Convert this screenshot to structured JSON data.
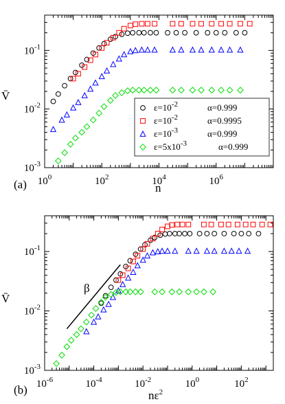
{
  "chart_data": [
    {
      "panel": "(a)",
      "type": "scatter",
      "xlabel": "n",
      "ylabel": "V̄",
      "x_scale": "log",
      "y_scale": "log",
      "xlim": [
        1,
        100000000
      ],
      "ylim": [
        0.001,
        0.4
      ],
      "x_ticks": [
        {
          "v": 1,
          "b": "10",
          "e": "0"
        },
        {
          "v": 100,
          "b": "10",
          "e": "2"
        },
        {
          "v": 10000,
          "b": "10",
          "e": "4"
        },
        {
          "v": 1000000,
          "b": "10",
          "e": "6"
        }
      ],
      "y_ticks": [
        {
          "v": 0.001,
          "b": "10",
          "e": "-3"
        },
        {
          "v": 0.01,
          "b": "10",
          "e": "-2"
        },
        {
          "v": 0.1,
          "b": "10",
          "e": "-1"
        }
      ],
      "legend": {
        "position": "bottom-right",
        "entries": [
          {
            "eps": "ε=10",
            "eps_exp": "-2",
            "alpha": "α=0.999"
          },
          {
            "eps": "ε=10",
            "eps_exp": "-2",
            "alpha": "α=0.9995"
          },
          {
            "eps": "ε=10",
            "eps_exp": "-3",
            "alpha": "α=0.999"
          },
          {
            "eps": "ε=5x10",
            "eps_exp": "-3",
            "alpha": "α=0.999"
          }
        ]
      },
      "series": [
        {
          "marker": "circle",
          "color": "#000000",
          "points": [
            [
              2,
              0.0135
            ],
            [
              3,
              0.018
            ],
            [
              5,
              0.025
            ],
            [
              8,
              0.033
            ],
            [
              12,
              0.042
            ],
            [
              20,
              0.056
            ],
            [
              30,
              0.07
            ],
            [
              50,
              0.09
            ],
            [
              80,
              0.11
            ],
            [
              120,
              0.13
            ],
            [
              200,
              0.155
            ],
            [
              300,
              0.172
            ],
            [
              500,
              0.188
            ],
            [
              800,
              0.197
            ],
            [
              1200,
              0.2
            ],
            [
              2000,
              0.2
            ],
            [
              3000,
              0.2
            ],
            [
              5000,
              0.2
            ],
            [
              8000,
              0.2
            ],
            [
              20000,
              0.2
            ],
            [
              40000,
              0.2
            ],
            [
              80000,
              0.2
            ],
            [
              200000,
              0.2
            ],
            [
              500000,
              0.2
            ],
            [
              1000000,
              0.2
            ],
            [
              2000000,
              0.2
            ],
            [
              5000000,
              0.2
            ],
            [
              10000000,
              0.2
            ]
          ]
        },
        {
          "marker": "square",
          "color": "#ff0000",
          "points": [
            [
              10,
              0.033
            ],
            [
              15,
              0.04
            ],
            [
              25,
              0.052
            ],
            [
              40,
              0.068
            ],
            [
              60,
              0.085
            ],
            [
              100,
              0.11
            ],
            [
              150,
              0.135
            ],
            [
              250,
              0.165
            ],
            [
              400,
              0.2
            ],
            [
              600,
              0.235
            ],
            [
              1000,
              0.265
            ],
            [
              1500,
              0.28
            ],
            [
              2500,
              0.285
            ],
            [
              4000,
              0.285
            ],
            [
              7000,
              0.285
            ],
            [
              30000,
              0.285
            ],
            [
              60000,
              0.285
            ],
            [
              150000,
              0.285
            ],
            [
              300000,
              0.285
            ],
            [
              700000,
              0.285
            ],
            [
              1500000,
              0.285
            ],
            [
              3000000,
              0.285
            ],
            [
              7000000,
              0.285
            ],
            [
              15000000,
              0.285
            ]
          ]
        },
        {
          "marker": "triangle",
          "color": "#0000ff",
          "points": [
            [
              2,
              0.0045
            ],
            [
              4,
              0.0065
            ],
            [
              6,
              0.008
            ],
            [
              10,
              0.0105
            ],
            [
              15,
              0.013
            ],
            [
              25,
              0.017
            ],
            [
              40,
              0.022
            ],
            [
              60,
              0.028
            ],
            [
              100,
              0.036
            ],
            [
              150,
              0.045
            ],
            [
              250,
              0.058
            ],
            [
              400,
              0.072
            ],
            [
              600,
              0.085
            ],
            [
              1000,
              0.096
            ],
            [
              1500,
              0.1
            ],
            [
              2500,
              0.102
            ],
            [
              4000,
              0.102
            ],
            [
              7000,
              0.102
            ],
            [
              30000,
              0.102
            ],
            [
              60000,
              0.102
            ],
            [
              150000,
              0.102
            ],
            [
              300000,
              0.102
            ],
            [
              700000,
              0.102
            ],
            [
              1500000,
              0.102
            ],
            [
              3000000,
              0.102
            ],
            [
              7000000,
              0.102
            ]
          ]
        },
        {
          "marker": "diamond",
          "color": "#00dd00",
          "points": [
            [
              3,
              0.0013
            ],
            [
              5,
              0.0018
            ],
            [
              8,
              0.0025
            ],
            [
              12,
              0.0032
            ],
            [
              20,
              0.004
            ],
            [
              30,
              0.005
            ],
            [
              50,
              0.0065
            ],
            [
              80,
              0.0085
            ],
            [
              120,
              0.011
            ],
            [
              200,
              0.014
            ],
            [
              300,
              0.017
            ],
            [
              500,
              0.019
            ],
            [
              800,
              0.0205
            ],
            [
              1200,
              0.021
            ],
            [
              2000,
              0.021
            ],
            [
              3000,
              0.021
            ],
            [
              5000,
              0.021
            ],
            [
              8000,
              0.021
            ],
            [
              30000,
              0.021
            ],
            [
              60000,
              0.021
            ],
            [
              150000,
              0.021
            ],
            [
              300000,
              0.021
            ],
            [
              700000,
              0.021
            ],
            [
              1500000,
              0.021
            ],
            [
              3000000,
              0.021
            ],
            [
              7000000,
              0.021
            ]
          ]
        }
      ]
    },
    {
      "panel": "(b)",
      "type": "scatter",
      "xlabel": "nε",
      "xlabel_exp": "2",
      "ylabel": "V̄",
      "x_scale": "log",
      "y_scale": "log",
      "xlim": [
        1e-06,
        2000
      ],
      "ylim": [
        0.001,
        0.4
      ],
      "x_ticks": [
        {
          "v": 1e-06,
          "b": "10",
          "e": "-6"
        },
        {
          "v": 0.0001,
          "b": "10",
          "e": "-4"
        },
        {
          "v": 0.01,
          "b": "10",
          "e": "-2"
        },
        {
          "v": 1,
          "b": "10",
          "e": "0"
        },
        {
          "v": 100,
          "b": "10",
          "e": "2"
        }
      ],
      "y_ticks": [
        {
          "v": 0.001,
          "b": "10",
          "e": "-3"
        },
        {
          "v": 0.01,
          "b": "10",
          "e": "-2"
        },
        {
          "v": 0.1,
          "b": "10",
          "e": "-1"
        }
      ],
      "annotation": {
        "text": "β",
        "line": [
          [
            8e-06,
            0.005
          ],
          [
            0.0012,
            0.06
          ]
        ]
      },
      "series": [
        {
          "marker": "circle",
          "color": "#000000",
          "points": [
            [
              0.0002,
              0.0135
            ],
            [
              0.0003,
              0.018
            ],
            [
              0.0005,
              0.025
            ],
            [
              0.0008,
              0.033
            ],
            [
              0.0012,
              0.042
            ],
            [
              0.002,
              0.056
            ],
            [
              0.003,
              0.07
            ],
            [
              0.005,
              0.09
            ],
            [
              0.008,
              0.11
            ],
            [
              0.012,
              0.13
            ],
            [
              0.02,
              0.155
            ],
            [
              0.03,
              0.172
            ],
            [
              0.05,
              0.188
            ],
            [
              0.08,
              0.197
            ],
            [
              0.12,
              0.2
            ],
            [
              0.2,
              0.2
            ],
            [
              0.3,
              0.2
            ],
            [
              0.5,
              0.2
            ],
            [
              0.8,
              0.2
            ],
            [
              2,
              0.2
            ],
            [
              4,
              0.2
            ],
            [
              8,
              0.2
            ],
            [
              20,
              0.2
            ],
            [
              50,
              0.2
            ],
            [
              100,
              0.2
            ],
            [
              200,
              0.2
            ],
            [
              500,
              0.2
            ]
          ]
        },
        {
          "marker": "square",
          "color": "#ff0000",
          "points": [
            [
              0.001,
              0.033
            ],
            [
              0.0015,
              0.04
            ],
            [
              0.0025,
              0.052
            ],
            [
              0.004,
              0.068
            ],
            [
              0.006,
              0.085
            ],
            [
              0.01,
              0.11
            ],
            [
              0.015,
              0.135
            ],
            [
              0.025,
              0.165
            ],
            [
              0.04,
              0.2
            ],
            [
              0.06,
              0.235
            ],
            [
              0.1,
              0.265
            ],
            [
              0.15,
              0.28
            ],
            [
              0.25,
              0.285
            ],
            [
              0.4,
              0.285
            ],
            [
              0.7,
              0.285
            ],
            [
              3,
              0.285
            ],
            [
              6,
              0.285
            ],
            [
              15,
              0.285
            ],
            [
              30,
              0.285
            ],
            [
              70,
              0.285
            ],
            [
              150,
              0.285
            ],
            [
              300,
              0.285
            ],
            [
              700,
              0.285
            ],
            [
              1500,
              0.285
            ]
          ]
        },
        {
          "marker": "triangle",
          "color": "#0000ff",
          "points": [
            [
              5e-05,
              0.0045
            ],
            [
              0.0001,
              0.0065
            ],
            [
              0.00015,
              0.008
            ],
            [
              0.00025,
              0.0105
            ],
            [
              0.0004,
              0.013
            ],
            [
              0.0006,
              0.017
            ],
            [
              0.001,
              0.022
            ],
            [
              0.0015,
              0.028
            ],
            [
              0.0025,
              0.036
            ],
            [
              0.004,
              0.045
            ],
            [
              0.006,
              0.058
            ],
            [
              0.01,
              0.072
            ],
            [
              0.015,
              0.085
            ],
            [
              0.025,
              0.096
            ],
            [
              0.04,
              0.1
            ],
            [
              0.06,
              0.102
            ],
            [
              0.1,
              0.102
            ],
            [
              0.2,
              0.102
            ],
            [
              0.7,
              0.102
            ],
            [
              1.5,
              0.102
            ],
            [
              4,
              0.102
            ],
            [
              8,
              0.102
            ],
            [
              20,
              0.102
            ],
            [
              40,
              0.102
            ],
            [
              80,
              0.102
            ],
            [
              180,
              0.102
            ]
          ]
        },
        {
          "marker": "diamond",
          "color": "#00dd00",
          "points": [
            [
              3e-06,
              0.0013
            ],
            [
              5e-06,
              0.0018
            ],
            [
              8e-06,
              0.0025
            ],
            [
              1.2e-05,
              0.0032
            ],
            [
              2e-05,
              0.004
            ],
            [
              3e-05,
              0.005
            ],
            [
              5e-05,
              0.0065
            ],
            [
              8e-05,
              0.0085
            ],
            [
              0.00012,
              0.011
            ],
            [
              0.0002,
              0.014
            ],
            [
              0.0003,
              0.017
            ],
            [
              0.0005,
              0.019
            ],
            [
              0.0008,
              0.0205
            ],
            [
              0.0012,
              0.021
            ],
            [
              0.002,
              0.021
            ],
            [
              0.003,
              0.021
            ],
            [
              0.005,
              0.021
            ],
            [
              0.008,
              0.021
            ],
            [
              0.03,
              0.021
            ],
            [
              0.06,
              0.021
            ],
            [
              0.15,
              0.021
            ],
            [
              0.3,
              0.021
            ],
            [
              0.7,
              0.021
            ],
            [
              1.5,
              0.021
            ],
            [
              3,
              0.021
            ],
            [
              7,
              0.021
            ]
          ]
        }
      ]
    }
  ]
}
